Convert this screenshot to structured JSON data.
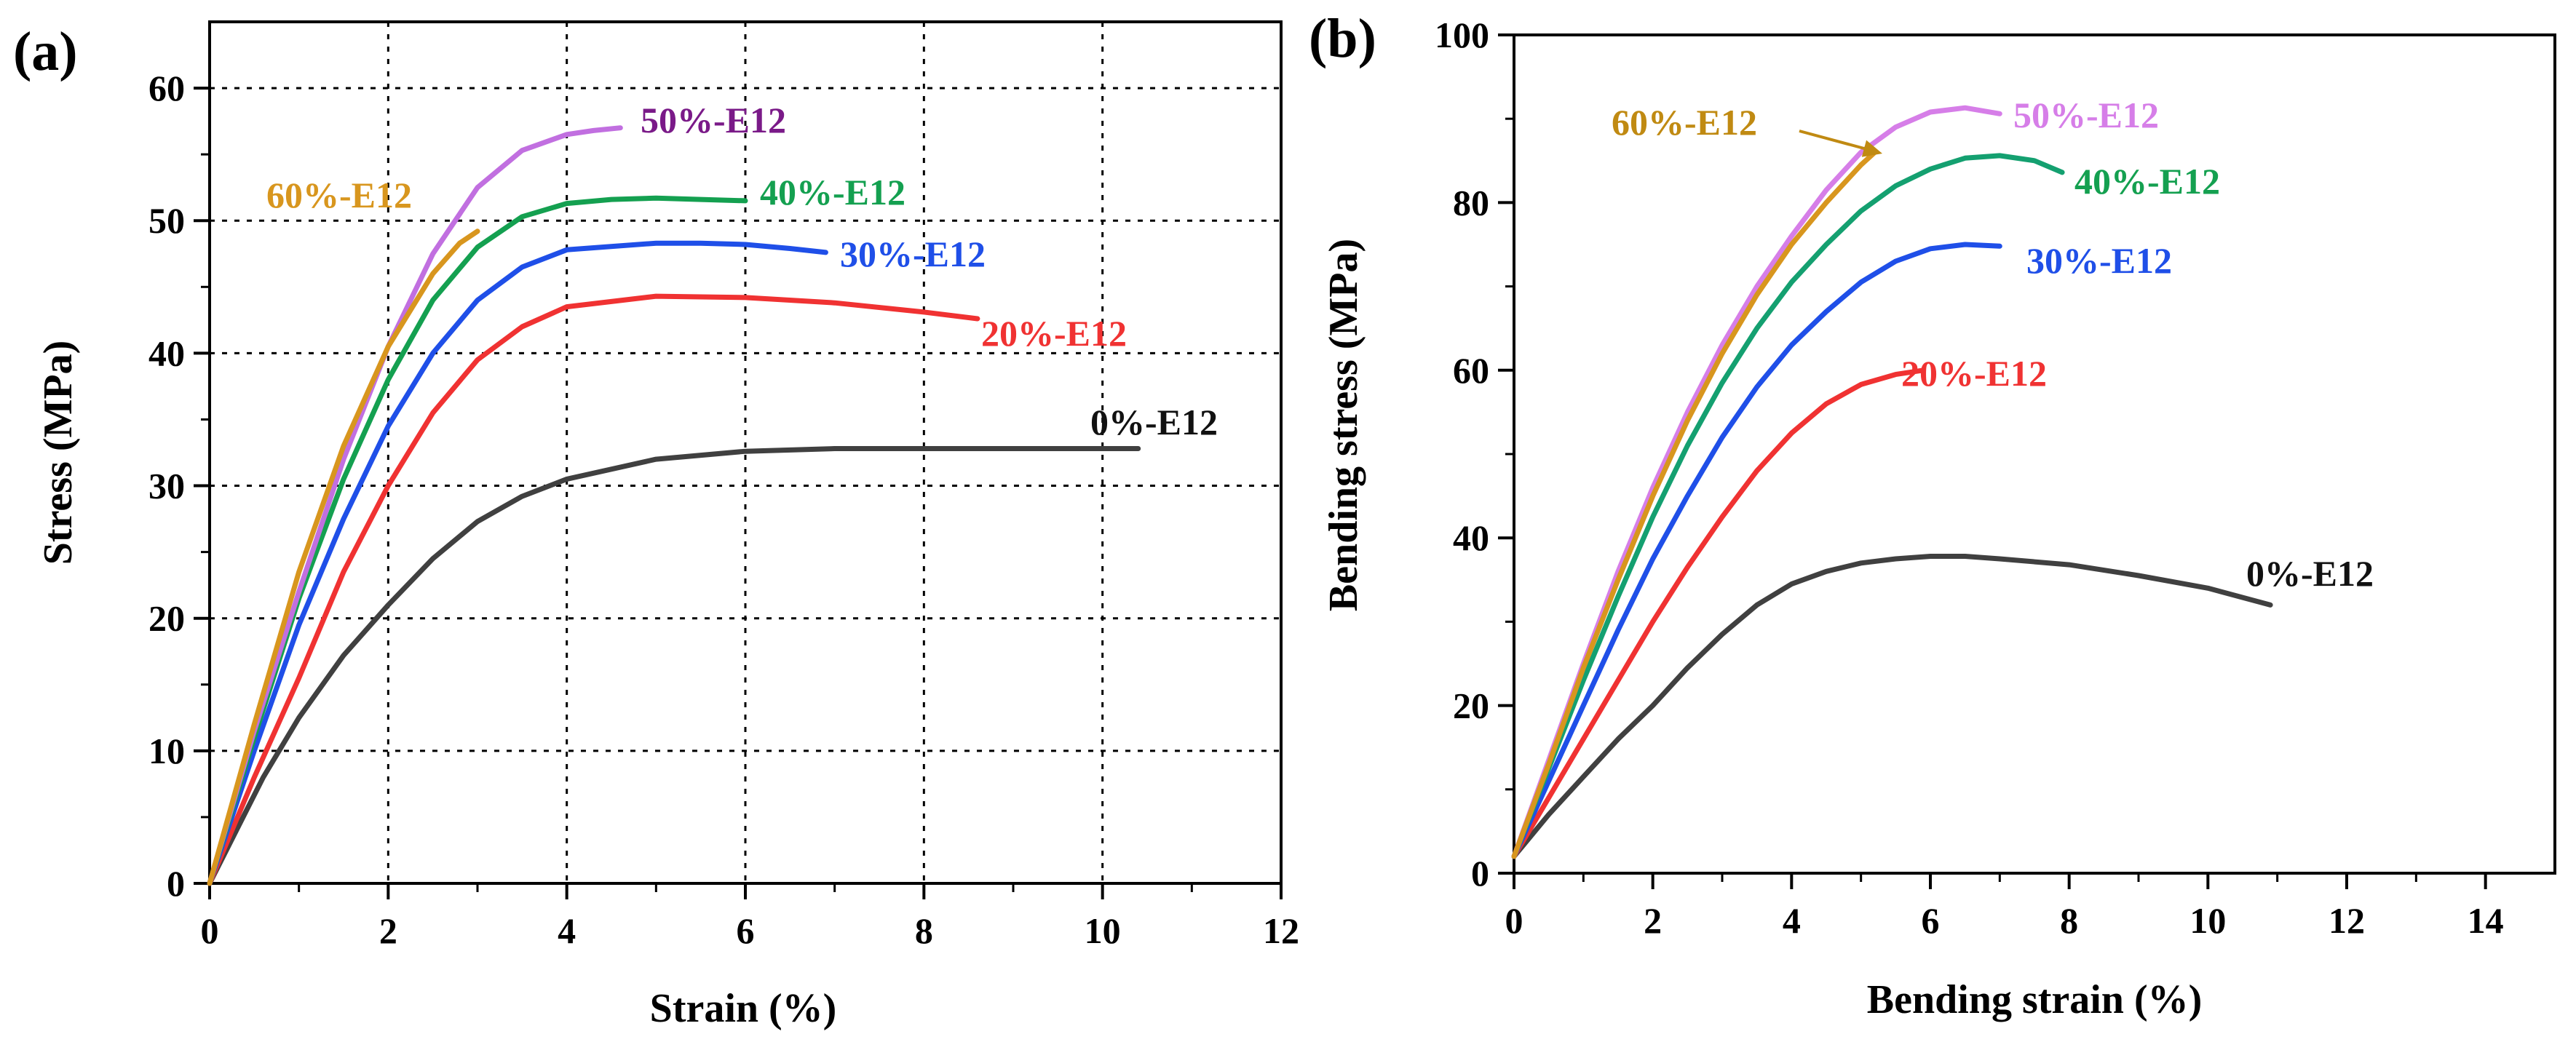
{
  "chart_data": [
    {
      "panel_label": "(a)",
      "type": "line",
      "xlabel": "Strain (%)",
      "ylabel": "Stress (MPa)",
      "xlim": [
        0,
        12
      ],
      "ylim": [
        0,
        65
      ],
      "xticks": [
        0,
        2,
        4,
        6,
        8,
        10,
        12
      ],
      "yticks": [
        0,
        10,
        20,
        30,
        40,
        50,
        60
      ],
      "grid": true,
      "series": [
        {
          "name": "0%-E12",
          "color": "#404040",
          "x": [
            0,
            0.3,
            0.6,
            1.0,
            1.5,
            2.0,
            2.5,
            3.0,
            3.5,
            4.0,
            5.0,
            6.0,
            7.0,
            8.0,
            9.0,
            10.0,
            10.4
          ],
          "y": [
            0,
            4,
            8,
            12.5,
            17.2,
            21.0,
            24.5,
            27.3,
            29.2,
            30.5,
            32.0,
            32.6,
            32.8,
            32.8,
            32.8,
            32.8,
            32.8
          ],
          "label": "0%-E12"
        },
        {
          "name": "20%-E12",
          "color": "#f03232",
          "x": [
            0,
            0.5,
            1.0,
            1.5,
            2.0,
            2.5,
            3.0,
            3.5,
            4.0,
            5.0,
            6.0,
            7.0,
            8.0,
            8.6
          ],
          "y": [
            0,
            8,
            15.5,
            23.5,
            30.0,
            35.5,
            39.5,
            42.0,
            43.5,
            44.3,
            44.2,
            43.8,
            43.1,
            42.6
          ],
          "label": "20%-E12"
        },
        {
          "name": "30%-E12",
          "color": "#1f4fe8",
          "x": [
            0,
            0.5,
            1.0,
            1.5,
            2.0,
            2.5,
            3.0,
            3.5,
            4.0,
            5.0,
            5.5,
            6.0,
            6.5,
            6.9
          ],
          "y": [
            0,
            10,
            19.5,
            27.5,
            34.5,
            40.0,
            44.0,
            46.5,
            47.8,
            48.3,
            48.3,
            48.2,
            47.9,
            47.6
          ],
          "label": "30%-E12"
        },
        {
          "name": "40%-E12",
          "color": "#14a050",
          "x": [
            0,
            0.5,
            1.0,
            1.5,
            2.0,
            2.5,
            3.0,
            3.5,
            4.0,
            4.5,
            5.0,
            5.5,
            6.0
          ],
          "y": [
            0,
            11,
            21.5,
            30.5,
            38.0,
            44.0,
            48.0,
            50.3,
            51.3,
            51.6,
            51.7,
            51.6,
            51.5
          ],
          "label": "40%-E12"
        },
        {
          "name": "50%-E12",
          "color": "#c16fe0",
          "x": [
            0,
            0.5,
            1.0,
            1.5,
            2.0,
            2.5,
            3.0,
            3.5,
            4.0,
            4.3,
            4.6
          ],
          "y": [
            0,
            11.5,
            22.0,
            32.0,
            40.5,
            47.5,
            52.5,
            55.3,
            56.5,
            56.8,
            57.0
          ],
          "label": "50%-E12"
        },
        {
          "name": "60%-E12",
          "color": "#d8961e",
          "x": [
            0,
            0.5,
            1.0,
            1.5,
            2.0,
            2.5,
            2.8,
            3.0
          ],
          "y": [
            0,
            12,
            23.5,
            33.0,
            40.5,
            46.0,
            48.3,
            49.2
          ],
          "label": "60%-E12"
        }
      ]
    },
    {
      "panel_label": "(b)",
      "type": "line",
      "xlabel": "Bending strain (%)",
      "ylabel": "Bending stress (MPa)",
      "xlim": [
        0,
        15
      ],
      "ylim": [
        0,
        100
      ],
      "xticks": [
        0,
        2,
        4,
        6,
        8,
        10,
        12,
        14
      ],
      "yticks": [
        0,
        20,
        40,
        60,
        80,
        100
      ],
      "grid": false,
      "series": [
        {
          "name": "0%-E12",
          "color": "#404040",
          "x": [
            0,
            0.5,
            1.0,
            1.5,
            2.0,
            2.5,
            3.0,
            3.5,
            4.0,
            4.5,
            5.0,
            5.5,
            6.0,
            6.5,
            7.0,
            8.0,
            9.0,
            10.0,
            10.9
          ],
          "y": [
            2,
            7,
            11.5,
            16,
            20,
            24.5,
            28.5,
            32,
            34.5,
            36,
            37,
            37.5,
            37.8,
            37.8,
            37.5,
            36.8,
            35.5,
            34.0,
            32
          ],
          "label": "0%-E12"
        },
        {
          "name": "20%-E12",
          "color": "#f03232",
          "x": [
            0,
            0.5,
            1.0,
            1.5,
            2.0,
            2.5,
            3.0,
            3.5,
            4.0,
            4.5,
            5.0,
            5.5,
            5.9
          ],
          "y": [
            2,
            9,
            16,
            23,
            30,
            36.5,
            42.5,
            48,
            52.5,
            56,
            58.3,
            59.5,
            60
          ],
          "label": "20%-E12"
        },
        {
          "name": "30%-E12",
          "color": "#1f4fe8",
          "x": [
            0,
            0.5,
            1.0,
            1.5,
            2.0,
            2.5,
            3.0,
            3.5,
            4.0,
            4.5,
            5.0,
            5.5,
            6.0,
            6.5,
            7.0
          ],
          "y": [
            2,
            11,
            20,
            29,
            37.5,
            45,
            52,
            58,
            63,
            67,
            70.5,
            73,
            74.5,
            75,
            74.8
          ],
          "label": "30%-E12"
        },
        {
          "name": "40%-E12",
          "color": "#14a070",
          "x": [
            0,
            0.5,
            1.0,
            1.5,
            2.0,
            2.5,
            3.0,
            3.5,
            4.0,
            4.5,
            5.0,
            5.5,
            6.0,
            6.5,
            7.0,
            7.5,
            7.9
          ],
          "y": [
            2,
            12.5,
            23,
            33,
            42.5,
            51,
            58.5,
            65,
            70.5,
            75,
            79,
            82,
            84,
            85.3,
            85.6,
            85.0,
            83.6
          ],
          "label": "40%-E12"
        },
        {
          "name": "50%-E12",
          "color": "#d67ee8",
          "x": [
            0,
            0.5,
            1.0,
            1.5,
            2.0,
            2.5,
            3.0,
            3.5,
            4.0,
            4.5,
            5.0,
            5.5,
            6.0,
            6.5,
            7.0
          ],
          "y": [
            2,
            13.5,
            25,
            36,
            46,
            55,
            63,
            70,
            76,
            81.5,
            86,
            89,
            90.8,
            91.3,
            90.6
          ],
          "label": "50%-E12"
        },
        {
          "name": "60%-E12",
          "color": "#d8961e",
          "x": [
            0,
            0.5,
            1.0,
            1.5,
            2.0,
            2.5,
            3.0,
            3.5,
            4.0,
            4.5,
            5.0,
            5.2
          ],
          "y": [
            2,
            13,
            24.5,
            35,
            45,
            54,
            62,
            69,
            75,
            80,
            84.5,
            86
          ],
          "label": "60%-E12"
        }
      ]
    }
  ]
}
